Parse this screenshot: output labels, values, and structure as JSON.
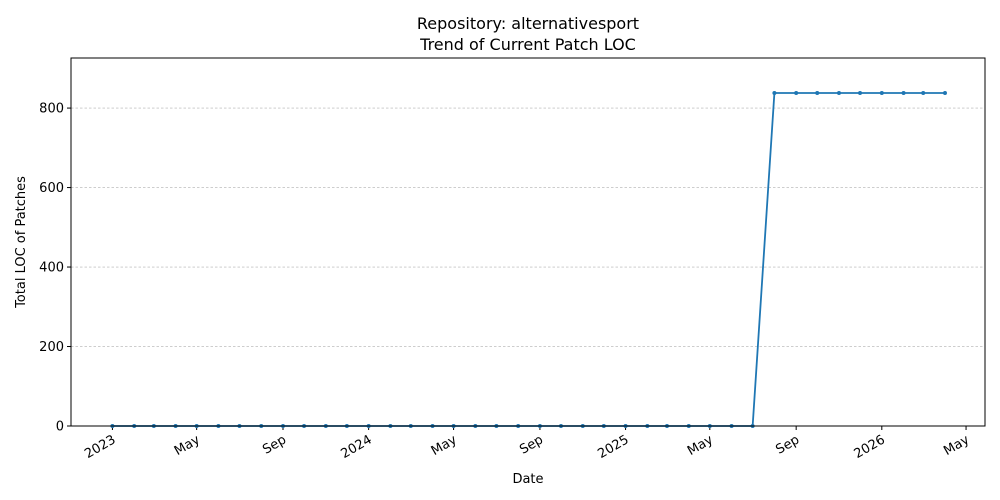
{
  "chart_data": {
    "type": "line",
    "title": "Repository: alternativesport",
    "subtitle": "Trend of Current Patch LOC",
    "x_label": "Date",
    "y_label": "Total LOC of Patches",
    "x": [
      "2023-01",
      "2023-02",
      "2023-03",
      "2023-04",
      "2023-05",
      "2023-06",
      "2023-07",
      "2023-08",
      "2023-09",
      "2023-10",
      "2023-11",
      "2023-12",
      "2024-01",
      "2024-02",
      "2024-03",
      "2024-04",
      "2024-05",
      "2024-06",
      "2024-07",
      "2024-08",
      "2024-09",
      "2024-10",
      "2024-11",
      "2024-12",
      "2025-01",
      "2025-02",
      "2025-03",
      "2025-04",
      "2025-05",
      "2025-06",
      "2025-07",
      "2025-08",
      "2025-09",
      "2025-10",
      "2025-11",
      "2025-12",
      "2026-01",
      "2026-02",
      "2026-03",
      "2026-04"
    ],
    "values": [
      0,
      0,
      0,
      0,
      0,
      0,
      0,
      0,
      0,
      0,
      0,
      0,
      0,
      0,
      0,
      0,
      0,
      0,
      0,
      0,
      0,
      0,
      0,
      0,
      0,
      0,
      0,
      0,
      0,
      0,
      0,
      838,
      838,
      838,
      838,
      838,
      838,
      838,
      838,
      838
    ],
    "color": "#1f77b4",
    "xlim": [
      "2022-11-03",
      "2026-05-28"
    ],
    "xticks": [
      {
        "value": "2023-01",
        "label": "2023"
      },
      {
        "value": "2023-05",
        "label": "May"
      },
      {
        "value": "2023-09",
        "label": "Sep"
      },
      {
        "value": "2024-01",
        "label": "2024"
      },
      {
        "value": "2024-05",
        "label": "May"
      },
      {
        "value": "2024-09",
        "label": "Sep"
      },
      {
        "value": "2025-01",
        "label": "2025"
      },
      {
        "value": "2025-05",
        "label": "May"
      },
      {
        "value": "2025-09",
        "label": "Sep"
      },
      {
        "value": "2026-01",
        "label": "2026"
      },
      {
        "value": "2026-05",
        "label": "May"
      }
    ],
    "ylim": [
      0,
      926
    ],
    "yticks": [
      0,
      200,
      400,
      600,
      800
    ],
    "grid": true
  }
}
